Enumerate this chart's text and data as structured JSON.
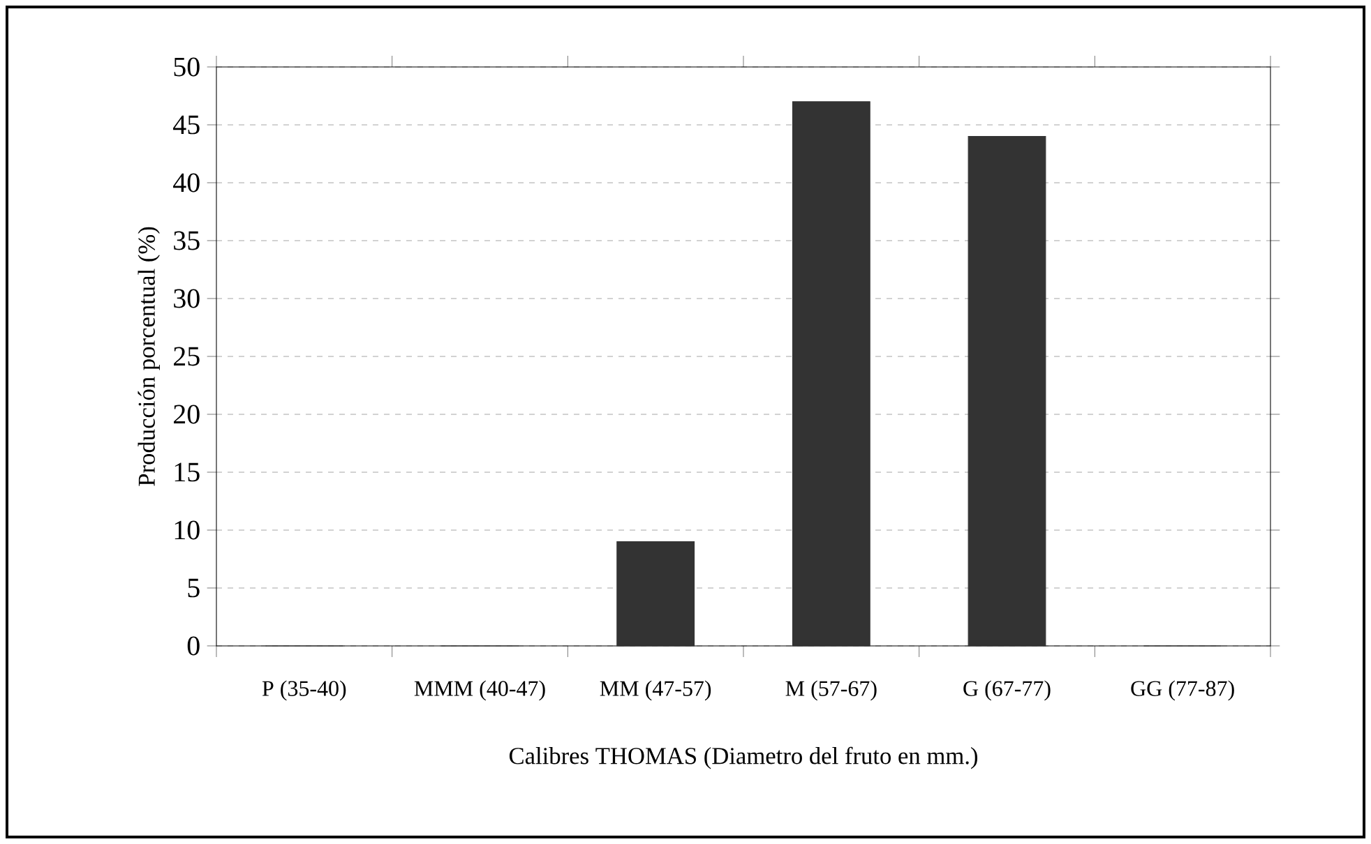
{
  "chart_data": {
    "type": "bar",
    "xlabel": "Calibres THOMAS (Diametro del fruto en mm.)",
    "ylabel": "Producción porcentual (%)",
    "categories": [
      "P (35-40)",
      "MMM (40-47)",
      "MM (47-57)",
      "M (57-67)",
      "G (67-77)",
      "GG (77-87)"
    ],
    "values": [
      0,
      0,
      9,
      47,
      44,
      0
    ],
    "color": "#333333",
    "ylim": [
      0,
      50
    ],
    "yticks": [
      0,
      5,
      10,
      15,
      20,
      25,
      30,
      35,
      40,
      45,
      50
    ],
    "grid": "y"
  }
}
